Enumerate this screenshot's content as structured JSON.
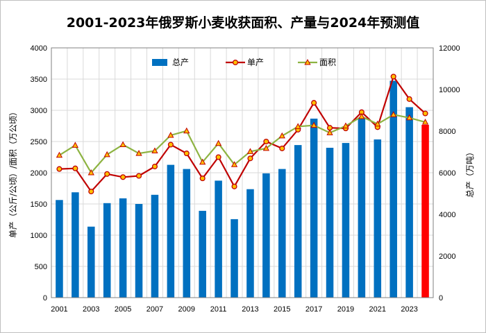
{
  "chart_data": {
    "type": "bar+line",
    "title": "2001-2023年俄罗斯小麦收获面积、产量与2024年预测值",
    "categories": [
      "2001",
      "2002",
      "2003",
      "2004",
      "2005",
      "2006",
      "2007",
      "2008",
      "2009",
      "2010",
      "2011",
      "2012",
      "2013",
      "2014",
      "2015",
      "2016",
      "2017",
      "2018",
      "2019",
      "2020",
      "2021",
      "2022",
      "2023",
      "2024"
    ],
    "x_tick_labels": [
      "2001",
      "2003",
      "2005",
      "2007",
      "2009",
      "2011",
      "2013",
      "2015",
      "2017",
      "2019",
      "2021",
      "2023"
    ],
    "ylabel_left": "单产（公斤/公顷）/面积（万公顷）",
    "ylabel_right": "总产（万吨）",
    "ylim_left": [
      0,
      4000
    ],
    "ylim_right": [
      0,
      12000
    ],
    "yticks_left": [
      0,
      500,
      1000,
      1500,
      2000,
      2500,
      3000,
      3500,
      4000
    ],
    "yticks_right": [
      0,
      2000,
      4000,
      6000,
      8000,
      10000,
      12000
    ],
    "series": [
      {
        "name": "总产",
        "kind": "bar",
        "axis": "right",
        "color": "#0070c0",
        "forecast_color": "#ff0000",
        "forecast_index": 23,
        "values": [
          4690,
          5060,
          3410,
          4540,
          4770,
          4500,
          4940,
          6380,
          6180,
          4170,
          5620,
          3770,
          5210,
          5970,
          6180,
          7330,
          8600,
          7200,
          7430,
          8590,
          7600,
          10420,
          9150,
          8300
        ]
      },
      {
        "name": "单产",
        "kind": "line",
        "axis": "left",
        "color": "#c00000",
        "marker": "circle",
        "marker_fill": "#ffc000",
        "values": [
          2060,
          2070,
          1700,
          1980,
          1930,
          1950,
          2100,
          2450,
          2310,
          1910,
          2250,
          1780,
          2230,
          2500,
          2390,
          2690,
          3120,
          2720,
          2710,
          2970,
          2730,
          3540,
          3180,
          2950
        ]
      },
      {
        "name": "面积",
        "kind": "line",
        "axis": "left",
        "color": "#8db341",
        "marker": "triangle",
        "marker_fill": "#ffc000",
        "values": [
          2280,
          2440,
          2000,
          2290,
          2450,
          2310,
          2350,
          2600,
          2670,
          2170,
          2470,
          2130,
          2340,
          2390,
          2590,
          2740,
          2760,
          2640,
          2750,
          2900,
          2780,
          2930,
          2880,
          2810
        ]
      }
    ],
    "legend_position": "top-center",
    "grid": true
  }
}
